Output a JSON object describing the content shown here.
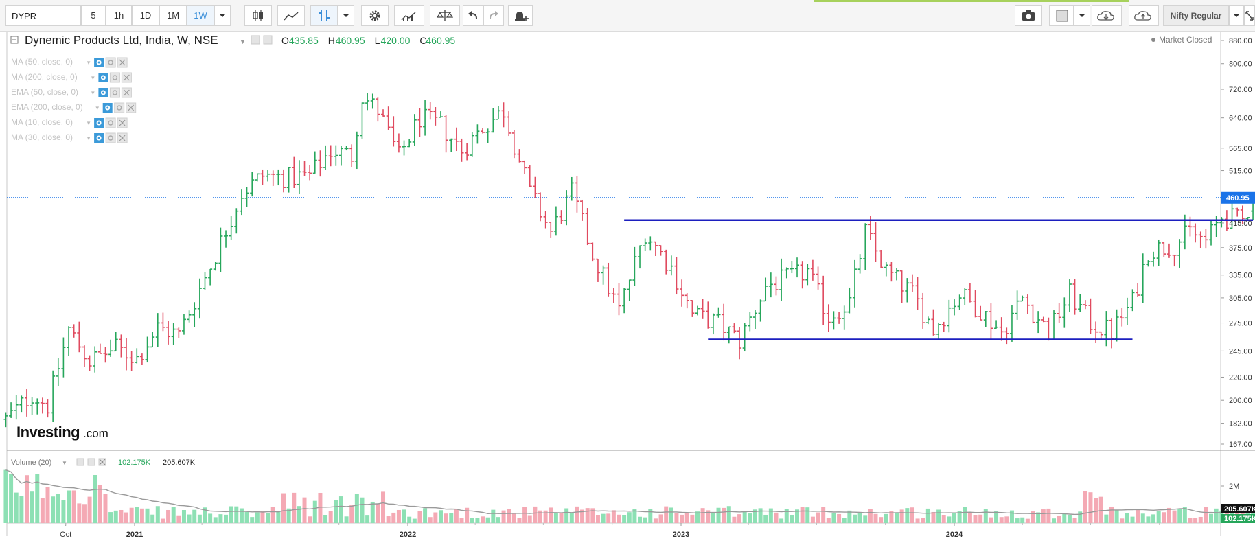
{
  "toolbar": {
    "symbol": "DYPR",
    "intervals": [
      "5",
      "1h",
      "1D",
      "1M",
      "1W"
    ],
    "active_interval": "1W",
    "theme_label": "Nifty Regular"
  },
  "chart_header": {
    "title": "Dynemic Products Ltd, India, W, NSE",
    "ohlc": [
      {
        "label": "O",
        "value": "435.85"
      },
      {
        "label": "H",
        "value": "460.95"
      },
      {
        "label": "L",
        "value": "420.00"
      },
      {
        "label": "C",
        "value": "460.95"
      }
    ],
    "market_status": "Market Closed",
    "indicators": [
      "MA (50, close, 0)",
      "MA (200, close, 0)",
      "EMA (50, close, 0)",
      "EMA (200, close, 0)",
      "MA (10, close, 0)",
      "MA (30, close, 0)"
    ],
    "logo_main": "Investing",
    "logo_suffix": ".com"
  },
  "colors": {
    "up": "#26a65b",
    "down": "#e04a5f",
    "up_volume": "#8de0b4",
    "down_volume": "#f4a9b4",
    "trendline": "#1c1fbf",
    "price_tag": "#1a73e8",
    "volume_tag_up": "#26a65b"
  },
  "chart_data": [
    {
      "type": "ohlc",
      "title": "Dynemic Products Ltd, India, W, NSE",
      "y_scale": "log",
      "y_ticks": [
        "880.00",
        "800.00",
        "720.00",
        "640.00",
        "565.00",
        "515.00",
        "460.95",
        "415.00",
        "375.00",
        "335.00",
        "305.00",
        "275.00",
        "245.00",
        "220.00",
        "200.00",
        "182.00",
        "167.00"
      ],
      "x_ticks": [
        "Oct",
        "2021",
        "2022",
        "2023",
        "2024"
      ],
      "current_price": "460.95",
      "price_path": [
        {
          "date": "2020-07-13",
          "price": 185
        },
        {
          "date": "2020-08-17",
          "price": 205
        },
        {
          "date": "2020-09-07",
          "price": 196
        },
        {
          "date": "2020-10-05",
          "price": 268
        },
        {
          "date": "2020-11-02",
          "price": 235
        },
        {
          "date": "2020-12-07",
          "price": 248
        },
        {
          "date": "2021-01-04",
          "price": 238
        },
        {
          "date": "2021-02-01",
          "price": 270
        },
        {
          "date": "2021-03-01",
          "price": 262
        },
        {
          "date": "2021-04-19",
          "price": 365
        },
        {
          "date": "2021-05-24",
          "price": 470
        },
        {
          "date": "2021-06-21",
          "price": 505
        },
        {
          "date": "2021-07-26",
          "price": 500
        },
        {
          "date": "2021-08-23",
          "price": 505
        },
        {
          "date": "2021-09-20",
          "price": 560
        },
        {
          "date": "2021-10-18",
          "price": 548
        },
        {
          "date": "2021-11-01",
          "price": 700
        },
        {
          "date": "2021-11-22",
          "price": 660
        },
        {
          "date": "2021-12-20",
          "price": 545
        },
        {
          "date": "2022-01-17",
          "price": 640
        },
        {
          "date": "2022-02-14",
          "price": 620
        },
        {
          "date": "2022-03-14",
          "price": 560
        },
        {
          "date": "2022-04-11",
          "price": 615
        },
        {
          "date": "2022-05-09",
          "price": 660
        },
        {
          "date": "2022-06-13",
          "price": 470
        },
        {
          "date": "2022-07-11",
          "price": 400
        },
        {
          "date": "2022-08-08",
          "price": 470
        },
        {
          "date": "2022-09-05",
          "price": 365
        },
        {
          "date": "2022-10-10",
          "price": 290
        },
        {
          "date": "2022-11-14",
          "price": 400
        },
        {
          "date": "2022-12-19",
          "price": 345
        },
        {
          "date": "2023-01-16",
          "price": 285
        },
        {
          "date": "2023-02-20",
          "price": 275
        },
        {
          "date": "2023-03-20",
          "price": 255
        },
        {
          "date": "2023-04-24",
          "price": 320
        },
        {
          "date": "2023-05-22",
          "price": 330
        },
        {
          "date": "2023-06-19",
          "price": 340
        },
        {
          "date": "2023-07-17",
          "price": 282
        },
        {
          "date": "2023-08-14",
          "price": 300
        },
        {
          "date": "2023-09-04",
          "price": 400
        },
        {
          "date": "2023-10-02",
          "price": 340
        },
        {
          "date": "2023-11-06",
          "price": 310
        },
        {
          "date": "2023-12-04",
          "price": 268
        },
        {
          "date": "2024-01-08",
          "price": 310
        },
        {
          "date": "2024-02-05",
          "price": 290
        },
        {
          "date": "2024-03-04",
          "price": 265
        },
        {
          "date": "2024-04-01",
          "price": 305
        },
        {
          "date": "2024-05-06",
          "price": 265
        },
        {
          "date": "2024-06-03",
          "price": 310
        },
        {
          "date": "2024-07-01",
          "price": 275
        },
        {
          "date": "2024-07-29",
          "price": 265
        },
        {
          "date": "2024-08-26",
          "price": 300
        },
        {
          "date": "2024-09-16",
          "price": 370
        },
        {
          "date": "2024-10-21",
          "price": 380
        },
        {
          "date": "2024-11-11",
          "price": 400
        },
        {
          "date": "2024-12-02",
          "price": 385
        },
        {
          "date": "2024-12-23",
          "price": 425
        },
        {
          "date": "2025-01-20",
          "price": 420
        },
        {
          "date": "2025-02-03",
          "price": 460.95
        }
      ],
      "horizontal_lines": [
        {
          "label": "resistance",
          "price": 420,
          "from": "2022-10-17",
          "to": "2025-02-03"
        },
        {
          "label": "support",
          "price": 257,
          "from": "2023-02-06",
          "to": "2024-08-26"
        }
      ]
    },
    {
      "type": "bar",
      "title": "Volume (20)",
      "values_label": [
        "102.175K",
        "205.607K"
      ],
      "y_ticks": [
        "2M"
      ],
      "last_volume": "102.175K",
      "ma_value": "205.607K"
    }
  ]
}
